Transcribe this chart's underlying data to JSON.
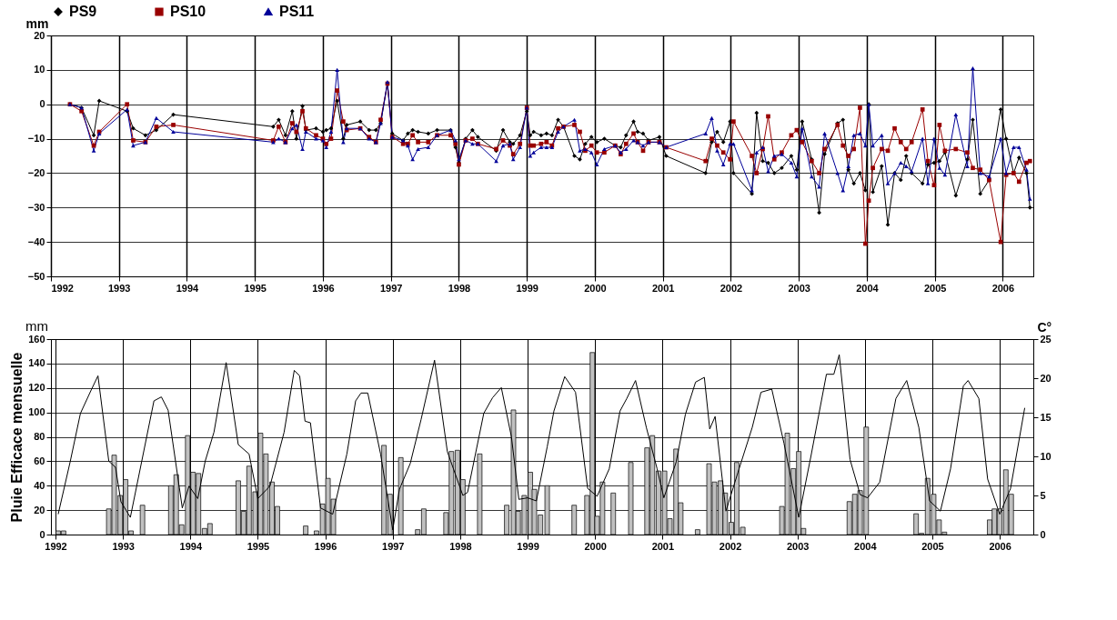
{
  "chart_data": [
    {
      "type": "line",
      "ylabel": "mm",
      "legend": "top",
      "grid": true,
      "xlim": [
        1992,
        2006.45
      ],
      "xticks": [
        1992,
        1993,
        1994,
        1995,
        1996,
        1997,
        1998,
        1999,
        2000,
        2001,
        2002,
        2003,
        2004,
        2005,
        2006
      ],
      "ylim": [
        -50,
        20
      ],
      "yticks": [
        -50,
        -40,
        -30,
        -20,
        -10,
        0,
        10,
        20
      ],
      "x": [
        1992.28,
        1992.45,
        1992.63,
        1992.71,
        1993.12,
        1993.21,
        1993.39,
        1993.55,
        1993.8,
        1995.27,
        1995.35,
        1995.45,
        1995.55,
        1995.61,
        1995.7,
        1995.75,
        1995.9,
        1996.0,
        1996.05,
        1996.12,
        1996.21,
        1996.3,
        1996.35,
        1996.55,
        1996.68,
        1996.78,
        1996.85,
        1996.95,
        1997.02,
        1997.18,
        1997.25,
        1997.32,
        1997.4,
        1997.55,
        1997.68,
        1997.88,
        1997.95,
        1998.0,
        1998.1,
        1998.2,
        1998.28,
        1998.55,
        1998.65,
        1998.75,
        1998.8,
        1998.9,
        1999.0,
        1999.05,
        1999.1,
        1999.21,
        1999.29,
        1999.37,
        1999.46,
        1999.54,
        1999.7,
        1999.78,
        1999.86,
        1999.95,
        2000.03,
        2000.14,
        2000.3,
        2000.38,
        2000.46,
        2000.57,
        2000.63,
        2000.71,
        2000.79,
        2000.95,
        2001.05,
        2001.63,
        2001.72,
        2001.8,
        2001.89,
        2001.99,
        2002.04,
        2002.31,
        2002.38,
        2002.47,
        2002.55,
        2002.64,
        2002.75,
        2002.89,
        2002.97,
        2003.05,
        2003.19,
        2003.3,
        2003.38,
        2003.57,
        2003.65,
        2003.73,
        2003.81,
        2003.9,
        2003.98,
        2004.03,
        2004.09,
        2004.22,
        2004.31,
        2004.41,
        2004.5,
        2004.58,
        2004.66,
        2004.82,
        2004.9,
        2004.99,
        2005.07,
        2005.15,
        2005.31,
        2005.48,
        2005.56,
        2005.67,
        2005.8,
        2005.97,
        2006.05,
        2006.16,
        2006.24,
        2006.35,
        2006.4
      ],
      "series": [
        {
          "name": "PS9",
          "color": "#000000",
          "marker": "diamond",
          "values": [
            0,
            -1,
            -9,
            1,
            -2,
            -7,
            -9,
            -7.5,
            -3,
            -6.5,
            -4.5,
            -9,
            -2,
            -10,
            -0.5,
            -7.5,
            -7,
            -8,
            -7.5,
            -7,
            1,
            -10,
            -6,
            -5,
            -7.5,
            -7.5,
            -5.5,
            6,
            -8.5,
            -10.5,
            -8.5,
            -7.5,
            -8,
            -8.5,
            -7.5,
            -7.5,
            -12.5,
            -17,
            -10,
            -7.5,
            -9.5,
            -13.5,
            -7.5,
            -11,
            -11.5,
            -9,
            -2,
            -9,
            -8,
            -9,
            -8.5,
            -9,
            -4.5,
            -6.5,
            -15,
            -16,
            -11.5,
            -9.5,
            -11,
            -10,
            -12,
            -12.5,
            -9,
            -5,
            -8,
            -8.5,
            -10.5,
            -9.5,
            -15,
            -20,
            -11,
            -8,
            -11,
            -5,
            -20,
            -26,
            -2.5,
            -16.5,
            -17,
            -20,
            -18.5,
            -15,
            -19,
            -5,
            -16,
            -31.5,
            -14.5,
            -5.5,
            -4.5,
            -19,
            -23,
            -20,
            -25,
            0,
            -25.5,
            -18,
            -35,
            -20,
            -22,
            -15,
            -20,
            -23,
            -17.5,
            -17,
            -16.5,
            -14,
            -26.5,
            -16,
            -4.5,
            -26,
            -22,
            -1.5,
            -10,
            -20,
            -15.5,
            -20,
            -30
          ]
        },
        {
          "name": "PS10",
          "color": "#990000",
          "marker": "square",
          "values": [
            0,
            -2,
            -12,
            -8,
            0,
            -10.5,
            -11,
            -6.5,
            -6,
            -10.5,
            -6.5,
            -11,
            -5.5,
            -8,
            -2,
            -7,
            -9,
            -10,
            -11.5,
            -10,
            4,
            -5,
            -7.5,
            -7,
            -9.5,
            -11,
            -4.5,
            6,
            -9.5,
            -11.5,
            -11.5,
            -9,
            -11,
            -11,
            -9,
            -9,
            -11.5,
            -17.5,
            -10.5,
            -10,
            -11.5,
            -13,
            -10.5,
            -12,
            -14.5,
            -11.5,
            -1,
            -12,
            -12,
            -11.5,
            -11,
            -12,
            -7,
            -6.5,
            -6,
            -8,
            -13.5,
            -12,
            -14,
            -14,
            -12,
            -14.5,
            -11.5,
            -8.5,
            -11,
            -13.5,
            -11,
            -11,
            -12.5,
            -16.5,
            -10,
            -12,
            -14,
            -16,
            -5,
            -15,
            -20,
            -13,
            -3.5,
            -16,
            -14,
            -9,
            -7.5,
            -11,
            -16.5,
            -20,
            -13,
            -6,
            -12,
            -15,
            -13,
            -1,
            -40.5,
            -28,
            -18.5,
            -13,
            -13.5,
            -7,
            -11,
            -13,
            -11,
            -1.5,
            -16.5,
            -23.5,
            -6,
            -13.5,
            -13,
            -14,
            -18.5,
            -19,
            -22,
            -40,
            -20.5,
            -20,
            -22.5,
            -17,
            -16.5
          ]
        },
        {
          "name": "PS11",
          "color": "#000099",
          "marker": "triangle",
          "values": [
            0,
            -1,
            -13.5,
            -8.5,
            -1.5,
            -12,
            -11,
            -4,
            -8,
            -11,
            -10,
            -11,
            -7,
            -6,
            -13,
            -8,
            -10,
            -10.5,
            -12.5,
            -8,
            10,
            -11,
            -7,
            -7,
            -10,
            -11,
            -5.5,
            6.5,
            -9.5,
            -10.5,
            -12,
            -16,
            -13,
            -12.5,
            -9,
            -7.5,
            -10.5,
            -16,
            -10.5,
            -11.5,
            -11.5,
            -16.5,
            -12,
            -11.5,
            -16,
            -12.5,
            -1,
            -15,
            -14,
            -12.5,
            -12.5,
            -12.5,
            -8,
            -6.5,
            -4.5,
            -13.5,
            -13,
            -14,
            -17.5,
            -13,
            -12,
            -14,
            -13,
            -10.5,
            -11,
            -12,
            -11,
            -11,
            -12.5,
            -8.5,
            -4,
            -13.5,
            -17.5,
            -11.5,
            -11.5,
            -25,
            -14,
            -12.5,
            -19.5,
            -15,
            -14.5,
            -17,
            -21,
            -7,
            -21,
            -24,
            -8.5,
            -20,
            -25,
            -18,
            -9,
            -8.5,
            -12,
            0,
            -12,
            -9,
            -23,
            -20,
            -17,
            -18,
            -19.5,
            -10,
            -23,
            -10,
            -18.5,
            -20.5,
            -3,
            -18,
            10.5,
            -20,
            -21,
            -10,
            -20,
            -12.5,
            -12.5,
            -19,
            -27.5
          ]
        }
      ]
    },
    {
      "type": "bar",
      "ylabel": "Pluie Efficace mensuelle",
      "y2label": "C°",
      "annotations": [
        "mm"
      ],
      "grid": true,
      "xlim": [
        1992,
        2006.43
      ],
      "xticks": [
        1992,
        1993,
        1994,
        1995,
        1996,
        1997,
        1998,
        1999,
        2000,
        2001,
        2002,
        2003,
        2004,
        2005,
        2006
      ],
      "ylim": [
        0,
        160
      ],
      "yticks": [
        0,
        20,
        40,
        60,
        80,
        100,
        120,
        140,
        160
      ],
      "y2lim": [
        0,
        25
      ],
      "y2ticks": [
        0,
        5,
        10,
        15,
        20,
        25
      ],
      "series": [
        {
          "type": "bar",
          "color": "#c0c0c0",
          "x": [
            1992.04,
            1992.12,
            1992.79,
            1992.87,
            1992.96,
            1993.04,
            1993.12,
            1993.29,
            1993.71,
            1993.79,
            1993.87,
            1993.96,
            1994.04,
            1994.12,
            1994.21,
            1994.29,
            1994.71,
            1994.79,
            1994.87,
            1994.96,
            1995.04,
            1995.12,
            1995.21,
            1995.29,
            1995.71,
            1995.87,
            1995.96,
            1996.04,
            1996.12,
            1996.87,
            1996.96,
            1997.12,
            1997.37,
            1997.46,
            1997.79,
            1997.87,
            1997.96,
            1998.04,
            1998.29,
            1998.69,
            1998.79,
            1998.86,
            1998.95,
            1999.04,
            1999.1,
            1999.19,
            1999.29,
            1999.69,
            1999.88,
            1999.96,
            2000.03,
            2000.11,
            2000.27,
            2000.53,
            2000.77,
            2000.85,
            2000.94,
            2001.03,
            2001.11,
            2001.2,
            2001.27,
            2001.52,
            2001.69,
            2001.77,
            2001.86,
            2001.93,
            2002.02,
            2002.1,
            2002.19,
            2002.77,
            2002.85,
            2002.94,
            2003.02,
            2003.09,
            2003.77,
            2003.85,
            2003.93,
            2004.02,
            2004.76,
            2004.84,
            2004.93,
            2005.02,
            2005.1,
            2005.18,
            2005.85,
            2005.92,
            2006.0,
            2006.09,
            2006.17
          ],
          "values": [
            3,
            3,
            21,
            65,
            32,
            45,
            3,
            24,
            40,
            49,
            8,
            81,
            51,
            50,
            5,
            9,
            44,
            19,
            56,
            35,
            83,
            66,
            43,
            23,
            7,
            3,
            25,
            46,
            29,
            73,
            33,
            63,
            4,
            21,
            18,
            68,
            69,
            45,
            66,
            24,
            102,
            19,
            32,
            51,
            37,
            16,
            40,
            24,
            32,
            149,
            15,
            43,
            34,
            59,
            71,
            81,
            52,
            52,
            13,
            70,
            26,
            4,
            58,
            43,
            44,
            34,
            10,
            59,
            6,
            23,
            83,
            54,
            68,
            5,
            27,
            33,
            36,
            88,
            17,
            1,
            46,
            33,
            12,
            2,
            12,
            21,
            21,
            53,
            33
          ]
        },
        {
          "type": "line",
          "axis": "y2",
          "color": "#000000",
          "x": [
            1992.04,
            1992.22,
            1992.37,
            1992.53,
            1992.63,
            1992.79,
            1992.89,
            1992.97,
            1993.11,
            1993.31,
            1993.46,
            1993.57,
            1993.67,
            1993.88,
            1993.98,
            1994.11,
            1994.22,
            1994.35,
            1994.53,
            1994.71,
            1994.87,
            1995.0,
            1995.18,
            1995.39,
            1995.54,
            1995.62,
            1995.7,
            1995.78,
            1995.93,
            1996.11,
            1996.32,
            1996.45,
            1996.53,
            1996.63,
            1996.82,
            1997.0,
            1997.1,
            1997.26,
            1997.42,
            1997.62,
            1997.81,
            1998.04,
            1998.11,
            1998.35,
            1998.48,
            1998.61,
            1998.76,
            1998.87,
            1999.0,
            1999.13,
            1999.29,
            1999.39,
            1999.55,
            1999.71,
            1999.89,
            2000.03,
            2000.21,
            2000.37,
            2000.47,
            2000.6,
            2000.76,
            2000.92,
            2001.02,
            2001.2,
            2001.34,
            2001.49,
            2001.62,
            2001.7,
            2001.78,
            2001.94,
            2002.12,
            2002.33,
            2002.46,
            2002.62,
            2002.8,
            2003.02,
            2003.2,
            2003.43,
            2003.54,
            2003.62,
            2003.78,
            2003.93,
            2004.04,
            2004.22,
            2004.46,
            2004.62,
            2004.8,
            2004.96,
            2005.12,
            2005.27,
            2005.46,
            2005.53,
            2005.69,
            2005.82,
            2006.0,
            2006.16,
            2006.37
          ],
          "values": [
            2.6,
            9.4,
            15.5,
            18.5,
            20.3,
            9.4,
            8.6,
            4.2,
            2.2,
            10.7,
            17.1,
            17.6,
            15.9,
            3.4,
            6.2,
            4.6,
            9.4,
            13.1,
            22,
            11.5,
            10.3,
            4.6,
            6.2,
            13.1,
            21,
            20.3,
            14.5,
            14.3,
            3.4,
            2.6,
            10.3,
            17.1,
            18.1,
            18.1,
            10.3,
            0.6,
            5.8,
            9.1,
            14.7,
            22.3,
            10.6,
            5,
            5.4,
            15.5,
            17.5,
            18.8,
            12.5,
            4.5,
            4.7,
            4.3,
            11.2,
            15.8,
            20.2,
            18.2,
            5.9,
            4.9,
            8.4,
            15.8,
            17.4,
            19.7,
            13.7,
            8.4,
            4.7,
            9.2,
            15.4,
            19.5,
            20.1,
            13.5,
            15.1,
            3,
            8,
            13.7,
            18.2,
            18.6,
            11.7,
            2.2,
            10,
            20.5,
            20.5,
            23,
            9.6,
            5.1,
            4.7,
            6.7,
            17.4,
            19.7,
            13.7,
            4.3,
            3,
            8.4,
            19,
            19.7,
            17.4,
            7.1,
            2.6,
            5.9,
            16.2
          ]
        }
      ]
    }
  ]
}
